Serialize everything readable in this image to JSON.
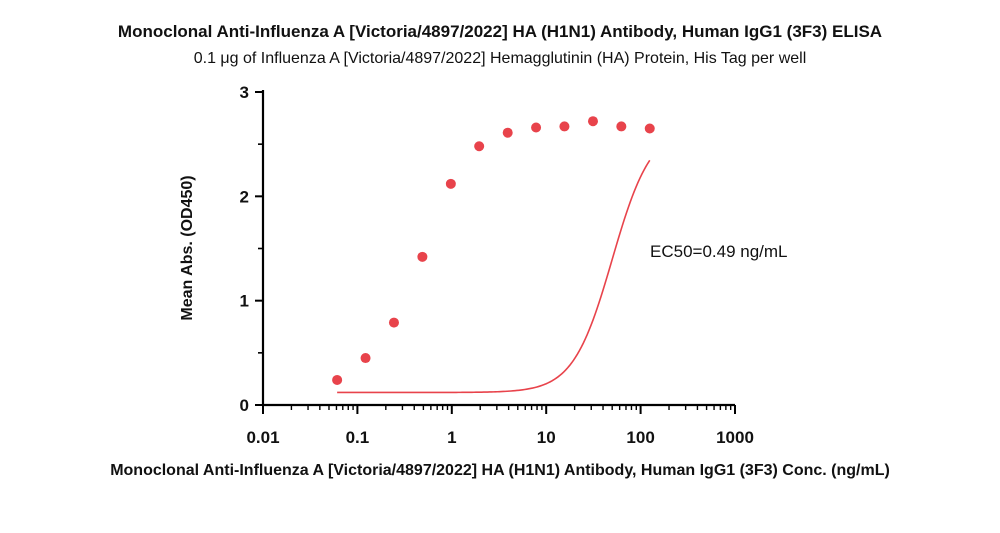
{
  "chart_data": {
    "type": "scatter",
    "title": "Monoclonal Anti-Influenza A [Victoria/4897/2022] HA (H1N1) Antibody, Human IgG1 (3F3) ELISA",
    "subtitle": "0.1 μg of Influenza A [Victoria/4897/2022] Hemagglutinin (HA) Protein, His Tag per well",
    "xlabel": "Monoclonal Anti-Influenza A [Victoria/4897/2022] HA (H1N1) Antibody, Human IgG1 (3F3) Conc. (ng/mL)",
    "ylabel": "Mean Abs. (OD450)",
    "x_scale": "log",
    "xlim": [
      0.01,
      1000
    ],
    "ylim": [
      0,
      3
    ],
    "x_ticks": [
      "0.01",
      "0.1",
      "1",
      "10",
      "100",
      "1000"
    ],
    "y_ticks": [
      "0",
      "1",
      "2",
      "3"
    ],
    "annotation": "EC50=0.49 ng/mL",
    "grid": false,
    "colors": {
      "points": "#e8434b",
      "curve": "#e8434b",
      "axis": "#000000"
    },
    "points": [
      {
        "x": 0.061,
        "y": 0.24
      },
      {
        "x": 0.122,
        "y": 0.45
      },
      {
        "x": 0.244,
        "y": 0.79
      },
      {
        "x": 0.488,
        "y": 1.42
      },
      {
        "x": 0.977,
        "y": 2.12
      },
      {
        "x": 1.95,
        "y": 2.48
      },
      {
        "x": 3.91,
        "y": 2.61
      },
      {
        "x": 7.81,
        "y": 2.66
      },
      {
        "x": 15.6,
        "y": 2.67
      },
      {
        "x": 31.3,
        "y": 2.72
      },
      {
        "x": 62.5,
        "y": 2.67
      },
      {
        "x": 125,
        "y": 2.65
      }
    ]
  }
}
